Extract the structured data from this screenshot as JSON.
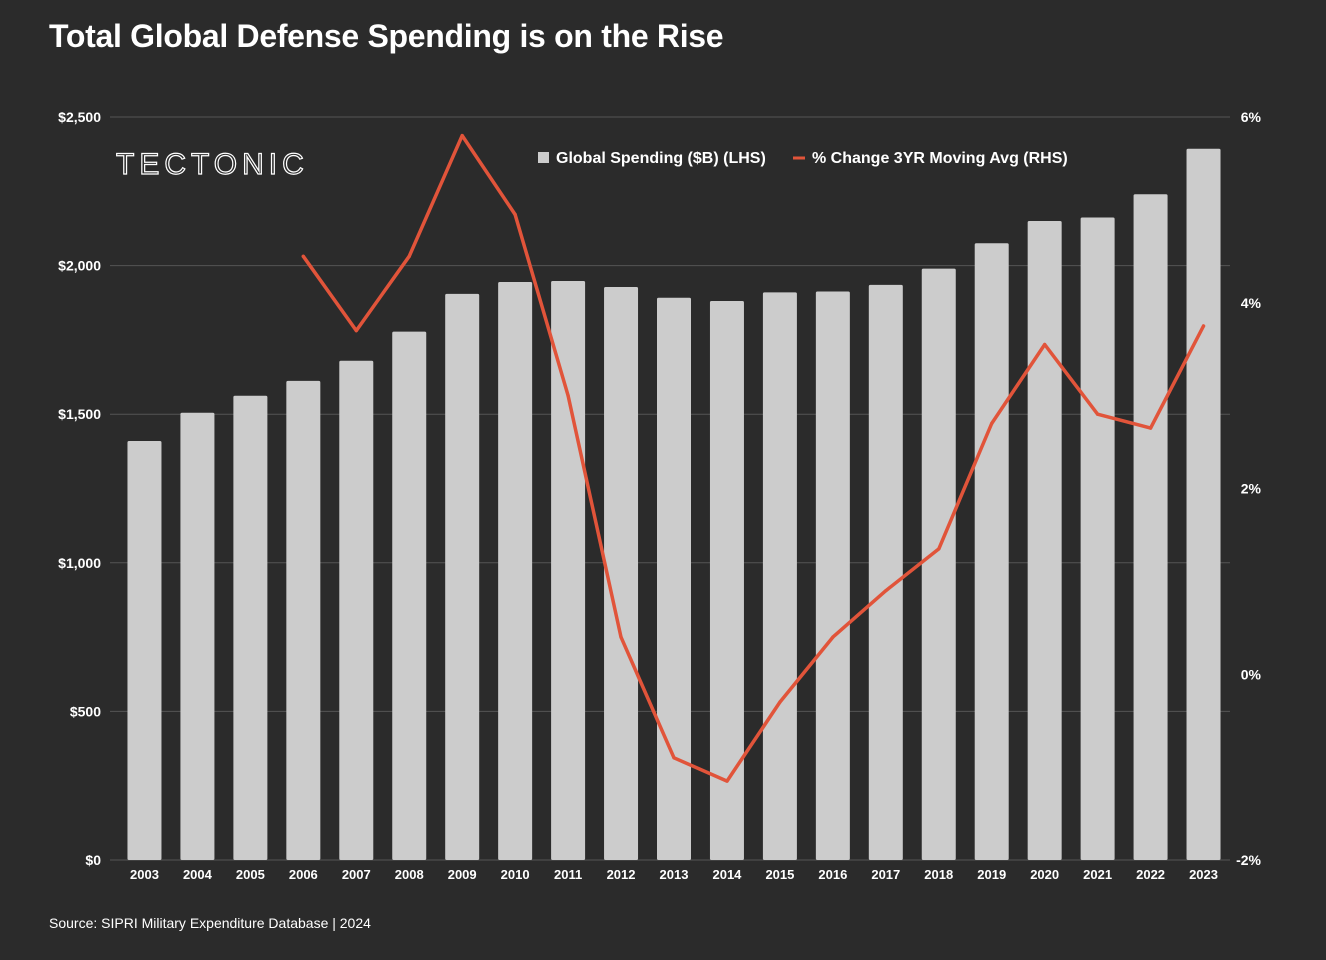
{
  "title": "Total Global Defense Spending is on the Rise",
  "logo": "TECTONIC",
  "source": "Source: SIPRI Military Expenditure Database | 2024",
  "colors": {
    "bar": "#cccccc",
    "line": "#e1543a",
    "background": "#2b2b2b",
    "grid": "#555555"
  },
  "chart_data": {
    "type": "bar",
    "categories": [
      "2003",
      "2004",
      "2005",
      "2006",
      "2007",
      "2008",
      "2009",
      "2010",
      "2011",
      "2012",
      "2013",
      "2014",
      "2015",
      "2016",
      "2017",
      "2018",
      "2019",
      "2020",
      "2021",
      "2022",
      "2023"
    ],
    "series": [
      {
        "name": "Global Spending ($B) (LHS)",
        "type": "bar",
        "axis": "left",
        "values": [
          1410,
          1505,
          1562,
          1612,
          1680,
          1778,
          1905,
          1945,
          1948,
          1928,
          1892,
          1881,
          1910,
          1913,
          1935,
          1990,
          2075,
          2150,
          2162,
          2240,
          2393
        ]
      },
      {
        "name": "% Change 3YR Moving Avg (RHS)",
        "type": "line",
        "axis": "right",
        "x": [
          "2006",
          "2007",
          "2008",
          "2009",
          "2010",
          "2011",
          "2012",
          "2013",
          "2014",
          "2015",
          "2016",
          "2017",
          "2018",
          "2019",
          "2020",
          "2021",
          "2022",
          "2023"
        ],
        "values": [
          4.5,
          3.7,
          4.5,
          5.8,
          4.95,
          3.0,
          0.4,
          -0.9,
          -1.15,
          -0.3,
          0.4,
          0.9,
          1.35,
          2.7,
          3.55,
          2.8,
          2.65,
          3.75
        ]
      }
    ],
    "yleft": {
      "range": [
        0,
        2500
      ],
      "ticks": [
        "$0",
        "$500",
        "$1,000",
        "$1,500",
        "$2,000",
        "$2,500"
      ],
      "tick_values": [
        0,
        500,
        1000,
        1500,
        2000,
        2500
      ]
    },
    "yright": {
      "range": [
        -2,
        6
      ],
      "ticks": [
        "-2%",
        "0%",
        "2%",
        "4%",
        "6%"
      ],
      "tick_values": [
        -2,
        0,
        2,
        4,
        6
      ]
    },
    "grid": true,
    "legend_position": "top-right"
  }
}
